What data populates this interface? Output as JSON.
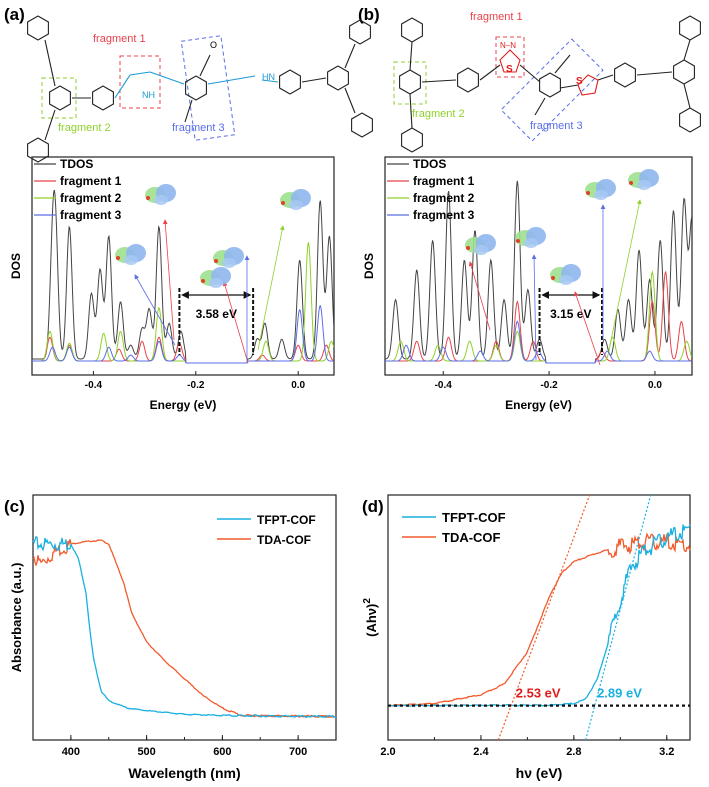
{
  "panels": {
    "a": {
      "label": "(a)",
      "fragment1": "fragment 1",
      "fragment2": "fragment 2",
      "fragment3": "fragment 3"
    },
    "b": {
      "label": "(b)",
      "fragment1": "fragment 1",
      "fragment2": "fragment 2",
      "fragment3": "fragment 3"
    },
    "c": {
      "label": "(c)"
    },
    "d": {
      "label": "(d)"
    }
  },
  "structure_atoms": {
    "N": "N",
    "O": "O",
    "NH": "NH",
    "HN": "HN",
    "S": "S",
    "N2": "N–N"
  },
  "colors": {
    "tdos": "#444444",
    "fragment1": "#e8434b",
    "fragment2": "#8fd12c",
    "fragment3": "#5a6ee8",
    "tfpt": "#1ab0e0",
    "tda": "#f25a2c",
    "gap_red": "#e01b1b"
  },
  "chart_data": [
    {
      "type": "line",
      "panel": "a",
      "xlabel": "Energy (eV)",
      "ylabel": "DOS",
      "xlim": [
        -0.52,
        0.07
      ],
      "xticks": [
        "-0.4",
        "-0.2",
        "0.0"
      ],
      "tick_values": [
        -0.4,
        -0.2,
        0.0
      ],
      "legend": "top-left",
      "gap_label": "3.58 eV",
      "gap": [
        -0.232,
        -0.088
      ],
      "series": [
        {
          "name": "TDOS",
          "peaks": [
            [
              -0.48,
              0.45
            ],
            [
              -0.474,
              0.55
            ],
            [
              -0.447,
              0.67
            ],
            [
              -0.404,
              0.33
            ],
            [
              -0.387,
              0.45
            ],
            [
              -0.37,
              0.62
            ],
            [
              -0.347,
              0.29
            ],
            [
              -0.327,
              0.07
            ],
            [
              -0.305,
              0.15
            ],
            [
              -0.291,
              0.25
            ],
            [
              -0.272,
              0.67
            ],
            [
              -0.252,
              0.18
            ],
            [
              -0.229,
              0.14
            ],
            [
              -0.08,
              0.1
            ],
            [
              -0.065,
              0.18
            ],
            [
              -0.032,
              0.1
            ],
            [
              0.003,
              0.5
            ],
            [
              0.043,
              0.8
            ],
            [
              0.061,
              0.62
            ]
          ]
        },
        {
          "name": "fragment 1",
          "peaks": [
            [
              -0.485,
              0.12
            ],
            [
              -0.447,
              0.08
            ],
            [
              -0.35,
              0.06
            ],
            [
              -0.305,
              0.1
            ],
            [
              -0.272,
              0.12
            ],
            [
              -0.232,
              0.09
            ],
            [
              -0.07,
              0.03
            ],
            [
              0.0,
              0.08
            ],
            [
              0.055,
              0.08
            ]
          ]
        },
        {
          "name": "fragment 2",
          "peaks": [
            [
              -0.485,
              0.15
            ],
            [
              -0.447,
              0.09
            ],
            [
              -0.38,
              0.14
            ],
            [
              -0.347,
              0.15
            ],
            [
              -0.272,
              0.27
            ],
            [
              -0.063,
              0.1
            ],
            [
              0.02,
              0.6
            ],
            [
              0.065,
              0.1
            ]
          ]
        },
        {
          "name": "fragment 3",
          "peaks": [
            [
              -0.48,
              0.07
            ],
            [
              -0.447,
              0.07
            ],
            [
              -0.37,
              0.07
            ],
            [
              -0.327,
              0.03
            ],
            [
              -0.272,
              0.1
            ],
            [
              -0.232,
              0.03
            ],
            [
              0.003,
              0.26
            ],
            [
              0.043,
              0.28
            ]
          ]
        }
      ]
    },
    {
      "type": "line",
      "panel": "b",
      "xlabel": "Energy (eV)",
      "ylabel": "DOS",
      "xlim": [
        -0.51,
        0.07
      ],
      "xticks": [
        "-0.4",
        "-0.2",
        "0.0"
      ],
      "tick_values": [
        -0.4,
        -0.2,
        0.0
      ],
      "legend": "top-left",
      "gap_label": "3.15 eV",
      "gap": [
        -0.218,
        -0.1
      ],
      "series": [
        {
          "name": "TDOS",
          "peaks": [
            [
              -0.49,
              0.3
            ],
            [
              -0.45,
              0.45
            ],
            [
              -0.42,
              0.6
            ],
            [
              -0.39,
              0.85
            ],
            [
              -0.36,
              0.5
            ],
            [
              -0.34,
              0.65
            ],
            [
              -0.31,
              0.5
            ],
            [
              -0.285,
              0.3
            ],
            [
              -0.26,
              0.9
            ],
            [
              -0.24,
              0.35
            ],
            [
              -0.218,
              0.1
            ],
            [
              -0.095,
              0.1
            ],
            [
              -0.07,
              0.25
            ],
            [
              -0.05,
              0.3
            ],
            [
              -0.03,
              0.55
            ],
            [
              -0.01,
              0.4
            ],
            [
              0.01,
              0.6
            ],
            [
              0.035,
              0.75
            ],
            [
              0.055,
              0.8
            ],
            [
              0.07,
              0.7
            ]
          ]
        },
        {
          "name": "fragment 1",
          "peaks": [
            [
              -0.45,
              0.1
            ],
            [
              -0.39,
              0.12
            ],
            [
              -0.3,
              0.1
            ],
            [
              -0.26,
              0.3
            ],
            [
              -0.23,
              0.1
            ],
            [
              -0.1,
              0.05
            ],
            [
              -0.005,
              0.3
            ],
            [
              0.02,
              0.45
            ],
            [
              0.05,
              0.2
            ]
          ]
        },
        {
          "name": "fragment 2",
          "peaks": [
            [
              -0.48,
              0.1
            ],
            [
              -0.41,
              0.08
            ],
            [
              -0.35,
              0.1
            ],
            [
              -0.3,
              0.08
            ],
            [
              -0.26,
              0.15
            ],
            [
              -0.08,
              0.12
            ],
            [
              -0.005,
              0.45
            ],
            [
              0.06,
              0.1
            ]
          ]
        },
        {
          "name": "fragment 3",
          "peaks": [
            [
              -0.47,
              0.08
            ],
            [
              -0.4,
              0.07
            ],
            [
              -0.33,
              0.05
            ],
            [
              -0.26,
              0.2
            ],
            [
              -0.22,
              0.05
            ],
            [
              -0.09,
              0.05
            ],
            [
              -0.01,
              0.05
            ]
          ]
        }
      ]
    },
    {
      "type": "line",
      "panel": "c",
      "xlabel": "Wavelength (nm)",
      "ylabel": "Absorbance (a.u.)",
      "xlim": [
        350,
        750
      ],
      "ylim": [
        0,
        1
      ],
      "xticks": [
        "400",
        "500",
        "600",
        "700"
      ],
      "tick_values": [
        400,
        500,
        600,
        700
      ],
      "legend": "top-right",
      "series": [
        {
          "name": "TFPT-COF",
          "x": [
            350,
            400,
            410,
            420,
            425,
            430,
            440,
            450,
            475,
            500,
            550,
            600,
            750
          ],
          "y": [
            0.8,
            0.8,
            0.74,
            0.6,
            0.45,
            0.33,
            0.2,
            0.16,
            0.13,
            0.12,
            0.105,
            0.1,
            0.095
          ]
        },
        {
          "name": "TDA-COF",
          "x": [
            350,
            360,
            380,
            400,
            420,
            440,
            450,
            460,
            470,
            480,
            500,
            525,
            550,
            575,
            600,
            625,
            750
          ],
          "y": [
            0.75,
            0.72,
            0.77,
            0.8,
            0.81,
            0.815,
            0.8,
            0.72,
            0.64,
            0.52,
            0.4,
            0.32,
            0.25,
            0.18,
            0.13,
            0.1,
            0.095
          ]
        }
      ]
    },
    {
      "type": "line",
      "panel": "d",
      "xlabel": "hν  (eV)",
      "ylabel": "(Ahν)",
      "ylabel_sup": "2",
      "xlim": [
        2.0,
        3.3
      ],
      "ylim": [
        -0.16,
        0.98
      ],
      "xticks": [
        "2.0",
        "2.4",
        "2.8",
        "3.2"
      ],
      "tick_values": [
        2.0,
        2.4,
        2.8,
        3.2
      ],
      "legend": "top-left",
      "series": [
        {
          "name": "TFPT-COF",
          "x": [
            2.0,
            2.7,
            2.8,
            2.85,
            2.9,
            2.95,
            3.0,
            3.05,
            3.1,
            3.2,
            3.3
          ],
          "y": [
            0,
            0.002,
            0.01,
            0.03,
            0.12,
            0.3,
            0.5,
            0.65,
            0.72,
            0.78,
            0.82
          ],
          "bandgap": 2.89,
          "bandgap_label": "2.89 eV"
        },
        {
          "name": "TDA-COF",
          "x": [
            2.0,
            2.2,
            2.4,
            2.5,
            2.6,
            2.7,
            2.75,
            2.8,
            2.9,
            3.0,
            3.1,
            3.2,
            3.3
          ],
          "y": [
            0,
            0.01,
            0.05,
            0.1,
            0.25,
            0.52,
            0.62,
            0.67,
            0.71,
            0.74,
            0.76,
            0.76,
            0.74
          ],
          "bandgap": 2.53,
          "bandgap_label": "2.53 eV"
        }
      ]
    }
  ]
}
